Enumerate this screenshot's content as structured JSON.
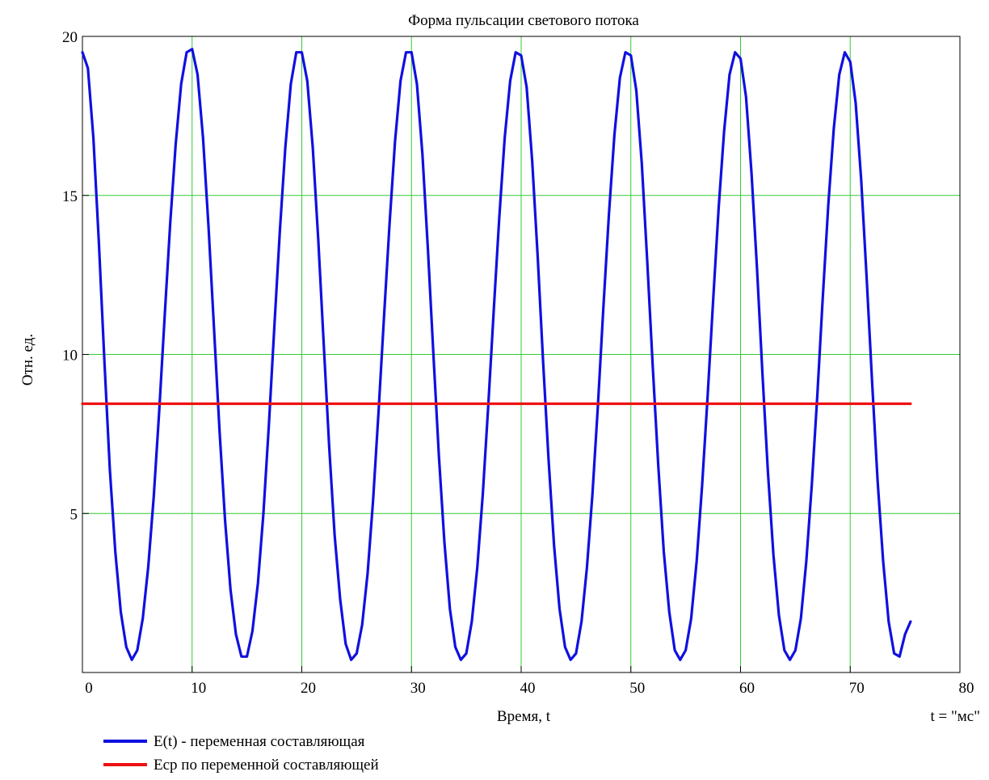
{
  "chart_data": {
    "type": "line",
    "title": "Форма пульсации светового потока",
    "xlabel": "Время, t",
    "ylabel": "Отн. ед.",
    "unit_note": "t = \"мс\"",
    "xlim": [
      0,
      80
    ],
    "ylim": [
      0,
      20
    ],
    "x_ticks": [
      0,
      10,
      20,
      30,
      40,
      50,
      60,
      70,
      80
    ],
    "y_ticks": [
      5,
      10,
      15,
      20
    ],
    "x_tick_labels": [
      "0",
      "10",
      "20",
      "30",
      "40",
      "50",
      "60",
      "70",
      "80"
    ],
    "y_tick_labels": [
      "5",
      "10",
      "15",
      "20"
    ],
    "grid": true,
    "grid_color": "#33cc33",
    "legend_position": "bottom-left",
    "series": [
      {
        "name": "E(t) - переменная составляющая",
        "color": "#1010e0",
        "x": [
          0,
          0.5,
          1,
          1.5,
          2,
          2.5,
          3,
          3.5,
          4,
          4.5,
          5,
          5.5,
          6,
          6.5,
          7,
          7.5,
          8,
          8.5,
          9,
          9.5,
          10,
          10.5,
          11,
          11.5,
          12,
          12.5,
          13,
          13.5,
          14,
          14.5,
          15,
          15.5,
          16,
          16.5,
          17,
          17.5,
          18,
          18.5,
          19,
          19.5,
          20,
          20.5,
          21,
          21.5,
          22,
          22.5,
          23,
          23.5,
          24,
          24.5,
          25,
          25.5,
          26,
          26.5,
          27,
          27.5,
          28,
          28.5,
          29,
          29.5,
          30,
          30.5,
          31,
          31.5,
          32,
          32.5,
          33,
          33.5,
          34,
          34.5,
          35,
          35.5,
          36,
          36.5,
          37,
          37.5,
          38,
          38.5,
          39,
          39.5,
          40,
          40.5,
          41,
          41.5,
          42,
          42.5,
          43,
          43.5,
          44,
          44.5,
          45,
          45.5,
          46,
          46.5,
          47,
          47.5,
          48,
          48.5,
          49,
          49.5,
          50,
          50.5,
          51,
          51.5,
          52,
          52.5,
          53,
          53.5,
          54,
          54.5,
          55,
          55.5,
          56,
          56.5,
          57,
          57.5,
          58,
          58.5,
          59,
          59.5,
          60,
          60.5,
          61,
          61.5,
          62,
          62.5,
          63,
          63.5,
          64,
          64.5,
          65,
          65.5,
          66,
          66.5,
          67,
          67.5,
          68,
          68.5,
          69,
          69.5,
          70,
          70.5,
          71,
          71.5,
          72,
          72.5,
          73,
          73.5,
          74,
          74.5,
          75,
          75.5
        ],
        "values": [
          19.5,
          19.0,
          16.8,
          13.5,
          9.8,
          6.4,
          3.8,
          1.9,
          0.8,
          0.4,
          0.7,
          1.7,
          3.3,
          5.5,
          8.2,
          11.2,
          14.1,
          16.6,
          18.5,
          19.5,
          19.6,
          18.8,
          16.8,
          14.0,
          10.8,
          7.6,
          4.8,
          2.6,
          1.2,
          0.5,
          0.5,
          1.3,
          2.8,
          5.0,
          7.8,
          10.9,
          13.9,
          16.5,
          18.5,
          19.5,
          19.5,
          18.6,
          16.5,
          13.6,
          10.3,
          7.1,
          4.3,
          2.3,
          0.9,
          0.4,
          0.6,
          1.5,
          3.1,
          5.4,
          8.2,
          11.2,
          14.1,
          16.7,
          18.6,
          19.5,
          19.5,
          18.5,
          16.3,
          13.3,
          10.0,
          6.8,
          4.1,
          2.0,
          0.8,
          0.4,
          0.6,
          1.6,
          3.3,
          5.6,
          8.4,
          11.4,
          14.3,
          16.8,
          18.6,
          19.5,
          19.4,
          18.4,
          16.1,
          13.1,
          9.8,
          6.7,
          4.0,
          2.0,
          0.8,
          0.4,
          0.6,
          1.6,
          3.3,
          5.6,
          8.4,
          11.5,
          14.4,
          16.9,
          18.7,
          19.5,
          19.4,
          18.3,
          16.0,
          12.9,
          9.6,
          6.5,
          3.8,
          1.9,
          0.7,
          0.4,
          0.7,
          1.7,
          3.5,
          5.9,
          8.7,
          11.7,
          14.6,
          17.0,
          18.8,
          19.5,
          19.3,
          18.1,
          15.7,
          12.7,
          9.4,
          6.3,
          3.7,
          1.8,
          0.7,
          0.4,
          0.7,
          1.7,
          3.5,
          5.9,
          8.7,
          11.8,
          14.7,
          17.1,
          18.8,
          19.5,
          19.2,
          17.9,
          15.5,
          12.4,
          9.1,
          6.0,
          3.5,
          1.6,
          0.6,
          0.5,
          1.2,
          1.6
        ]
      },
      {
        "name": "Ecp по переменной составляющей",
        "color": "#ee1111",
        "x": [
          0,
          75.5
        ],
        "values": [
          8.45,
          8.45
        ]
      }
    ]
  }
}
